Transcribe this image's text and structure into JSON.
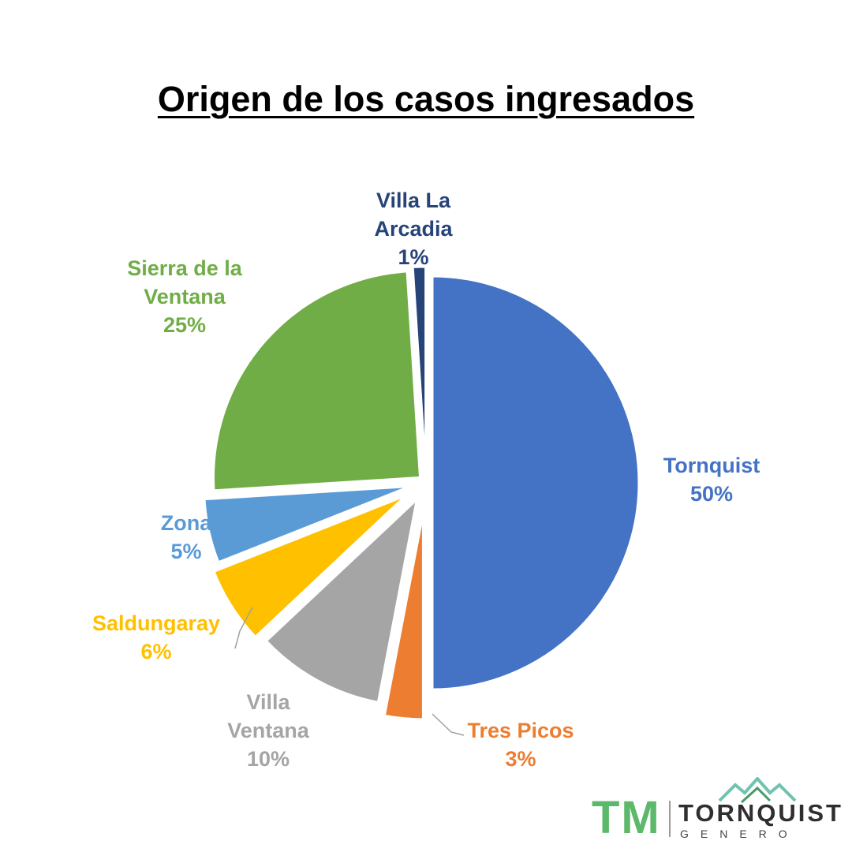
{
  "chart_data": {
    "type": "pie",
    "title": "Origen de los casos ingresados",
    "slices": [
      {
        "name": "Tornquist",
        "label_lines": "Tornquist",
        "value": 50,
        "pct_label": "50%",
        "color": "#4472c4"
      },
      {
        "name": "Tres Picos",
        "label_lines": "Tres Picos",
        "value": 3,
        "pct_label": "3%",
        "color": "#ed7d31"
      },
      {
        "name": "Villa Ventana",
        "label_lines": "Villa\nVentana",
        "value": 10,
        "pct_label": "10%",
        "color": "#a5a5a5"
      },
      {
        "name": "Saldungaray",
        "label_lines": "Saldungaray",
        "value": 6,
        "pct_label": "6%",
        "color": "#ffc000"
      },
      {
        "name": "Zona",
        "label_lines": "Zona",
        "value": 5,
        "pct_label": "5%",
        "color": "#5b9bd5"
      },
      {
        "name": "Sierra de la Ventana",
        "label_lines": "Sierra de la\nVentana",
        "value": 25,
        "pct_label": "25%",
        "color": "#70ad47"
      },
      {
        "name": "Villa La Arcadia",
        "label_lines": "Villa La\nArcadia",
        "value": 1,
        "pct_label": "1%",
        "color": "#264478"
      }
    ],
    "legend": "none"
  },
  "logo": {
    "mark": "TM",
    "name": "TORNQUIST",
    "sub": "GENERO",
    "colors": {
      "mark": "#5cb86a",
      "mountain_1": "#6fc3b0",
      "mountain_2": "#4a9a6a"
    }
  }
}
